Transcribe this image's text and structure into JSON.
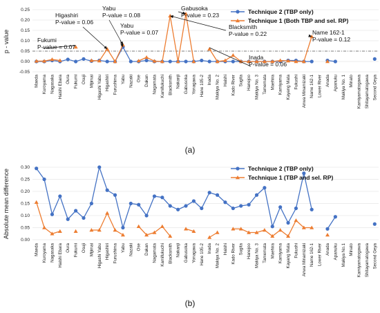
{
  "colors": {
    "technique2": "#4472C4",
    "technique1": "#ED7D31",
    "text": "#111111"
  },
  "chart_data": [
    {
      "type": "line",
      "caption": "(a)",
      "ylabel": "p - value",
      "ylim": [
        -0.05,
        0.25
      ],
      "yticks": [
        "-0.05",
        "0.00",
        "0.05",
        "0.10",
        "0.15",
        "0.20",
        "0.25"
      ],
      "threshold": 0.05,
      "legend_position": "top-right",
      "categories": [
        "Maeda",
        "Kuroyama",
        "Nagasaka",
        "Haishi Ebara",
        "Oura",
        "Fukumi",
        "Osuji",
        "Mijimai",
        "Higashi Yabu",
        "Higashiri",
        "Furushima",
        "Yabu",
        "Nazaki",
        "Ose",
        "Dakan",
        "Nagamata",
        "Kamifukuchi",
        "Blacksmith",
        "Nakanji",
        "Gabusoka",
        "Yonagawa",
        "Hane 105-2",
        "Inada",
        "Makiya No. 2",
        "Haishi",
        "Kado River",
        "Sugita",
        "Hanejoo",
        "Makiya No. 3",
        "Tamemata",
        "Maehira",
        "Kamiyama",
        "Kayang Mata",
        "Fukushi",
        "Anwa Minamizaki",
        "Name 162-1",
        "Lower River",
        "Anada",
        "Apanuku",
        "Makiya No. 1",
        "Minato",
        "Kamiyamatogawa",
        "Shitayamatogawa",
        "Second Geya"
      ],
      "series": [
        {
          "name": "Technique 2 (TBP only)",
          "color": "#4472C4",
          "values": [
            0.0,
            0.0,
            0.005,
            0.0,
            0.01,
            0.0,
            0.012,
            0.002,
            0.005,
            0.0,
            0.0,
            0.07,
            0.0,
            0.0,
            0.005,
            0.0,
            0.0,
            0.0,
            0.0,
            0.0,
            0.0,
            0.005,
            0.0,
            0.0,
            0.0,
            0.0,
            0.0,
            0.0,
            0.0,
            0.0,
            0.0,
            0.0,
            0.005,
            0.005,
            0.0,
            0.0,
            null,
            0.005,
            0.0,
            null,
            null,
            null,
            null,
            0.012
          ]
        },
        {
          "name": "Technique 1 (Both TBP and sel. RP)",
          "color": "#ED7D31",
          "values": [
            0.002,
            0.002,
            0.01,
            0.005,
            null,
            0.07,
            null,
            0.005,
            0.003,
            0.06,
            0.0,
            0.08,
            null,
            0.003,
            0.02,
            0.002,
            0.0,
            0.22,
            0.0,
            0.23,
            0.0,
            null,
            0.06,
            0.0,
            0.005,
            0.03,
            0.0,
            0.0,
            0.0,
            0.0,
            0.0,
            0.005,
            0.003,
            0.0,
            0.0,
            0.12,
            null,
            0.0,
            null,
            null,
            null,
            null,
            null,
            null
          ]
        }
      ],
      "annotations": [
        {
          "lines": [
            "Fukumi",
            "P-value = 0.07"
          ],
          "category": "Fukumi",
          "value": 0.07
        },
        {
          "lines": [
            "Higashiri",
            "P-value = 0.06"
          ],
          "category": "Higashiri",
          "value": 0.06
        },
        {
          "lines": [
            "Yabu",
            "P-value = 0.08"
          ],
          "category": "Yabu",
          "value": 0.08
        },
        {
          "lines": [
            "Yabu",
            "P-value = 0.07"
          ],
          "category": "Yabu",
          "value": 0.07
        },
        {
          "lines": [
            "Gabusoka",
            "P-value = 0.23"
          ],
          "category": "Gabusoka",
          "value": 0.23
        },
        {
          "lines": [
            "Blacksmith",
            "P-value = 0.22"
          ],
          "category": "Blacksmith",
          "value": 0.22
        },
        {
          "lines": [
            "Inada",
            "P-value = 0.06"
          ],
          "category": "Inada",
          "value": 0.06
        },
        {
          "lines": [
            "Name 162-1",
            "P-value = 0.12"
          ],
          "category": "Name 162-1",
          "value": 0.12
        }
      ]
    },
    {
      "type": "line",
      "caption": "(b)",
      "ylabel": "Absolute mean difference",
      "ylim": [
        0.0,
        0.3
      ],
      "yticks": [
        "0.00",
        "0.05",
        "0.10",
        "0.15",
        "0.20",
        "0.25",
        "0.30"
      ],
      "legend_position": "top-right",
      "categories": [
        "Maeda",
        "Kuroyama",
        "Nagasaka",
        "Haishi Ebara",
        "Oura",
        "Fukumi",
        "Osuji",
        "Mijimai",
        "Higashi Yabu",
        "Higashiri",
        "Furushima",
        "Yabu",
        "Nazaki",
        "Ose",
        "Dakan",
        "Nagamata",
        "Kamifukuchi",
        "Blacksmith",
        "Nakanji",
        "Gabusoka",
        "Yonagawa",
        "Hane 105-2",
        "Inada",
        "Makiya No. 2",
        "Haishi",
        "Kado River",
        "Sugita",
        "Hanejoo",
        "Makiya No. 3",
        "Tamemata",
        "Maehira",
        "Kamiyama",
        "Kayang Mata",
        "Fukushi",
        "Anwa Minamizaki",
        "Name 162-1",
        "Lower River",
        "Anada",
        "Apanuku",
        "Makiya No.1",
        "Minato",
        "Kamiyamatogawa",
        "Shitayamatogawa",
        "Second Geya"
      ],
      "series": [
        {
          "name": "Technique 2 (TBP only)",
          "color": "#4472C4",
          "values": [
            0.295,
            0.25,
            0.105,
            0.18,
            0.085,
            0.12,
            0.09,
            0.15,
            0.3,
            0.205,
            0.185,
            0.05,
            0.15,
            0.145,
            0.1,
            0.18,
            0.175,
            0.14,
            0.125,
            0.14,
            0.16,
            0.13,
            0.195,
            0.185,
            0.155,
            0.13,
            0.14,
            0.145,
            0.185,
            0.215,
            0.055,
            0.135,
            0.07,
            0.13,
            0.275,
            0.125,
            null,
            0.045,
            0.095,
            null,
            null,
            null,
            null,
            0.065
          ]
        },
        {
          "name": "Technique 1 (TBP and sel. RP)",
          "color": "#ED7D31",
          "values": [
            0.155,
            0.05,
            0.025,
            0.035,
            null,
            0.035,
            null,
            0.04,
            0.04,
            0.11,
            0.04,
            0.02,
            null,
            0.055,
            0.02,
            0.03,
            0.055,
            0.015,
            null,
            0.045,
            0.035,
            null,
            0.01,
            0.03,
            null,
            0.045,
            0.045,
            0.03,
            0.03,
            0.04,
            0.015,
            0.04,
            0.015,
            0.08,
            0.05,
            0.05,
            null,
            0.02,
            null,
            null,
            null,
            null,
            null,
            null
          ]
        }
      ]
    }
  ]
}
